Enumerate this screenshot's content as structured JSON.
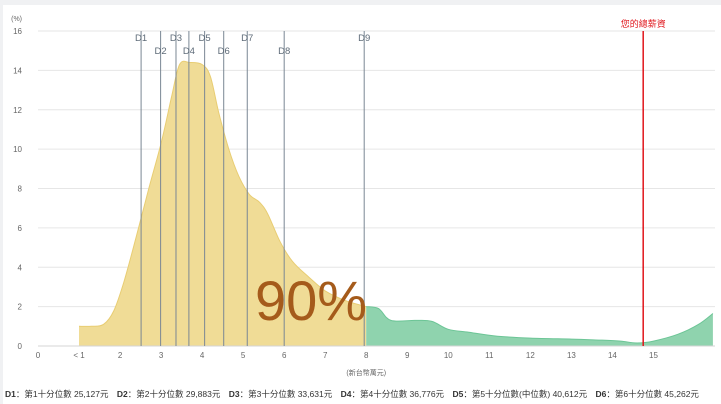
{
  "chart_data": {
    "type": "area",
    "y_unit_label": "(%)",
    "x_unit_label": "(新台幣萬元)",
    "xlim": [
      0,
      16.5
    ],
    "ylim": [
      0,
      16
    ],
    "y_ticks": [
      0,
      2,
      4,
      6,
      8,
      10,
      12,
      14,
      16
    ],
    "x_ticks": [
      {
        "v": 0,
        "label": "0"
      },
      {
        "v": 1,
        "label": "< 1"
      },
      {
        "v": 2,
        "label": "2"
      },
      {
        "v": 3,
        "label": "3"
      },
      {
        "v": 4,
        "label": "4"
      },
      {
        "v": 5,
        "label": "5"
      },
      {
        "v": 6,
        "label": "6"
      },
      {
        "v": 7,
        "label": "7"
      },
      {
        "v": 8,
        "label": "8"
      },
      {
        "v": 9,
        "label": "9"
      },
      {
        "v": 10,
        "label": "10"
      },
      {
        "v": 11,
        "label": "11"
      },
      {
        "v": 12,
        "label": "12"
      },
      {
        "v": 13,
        "label": "13"
      },
      {
        "v": 14,
        "label": "14"
      },
      {
        "v": 15,
        "label": "15"
      }
    ],
    "distribution": [
      [
        1.0,
        1.0
      ],
      [
        1.3,
        1.0
      ],
      [
        1.6,
        1.1
      ],
      [
        1.85,
        1.8
      ],
      [
        2.1,
        3.3
      ],
      [
        2.4,
        5.6
      ],
      [
        2.7,
        8.0
      ],
      [
        3.0,
        10.3
      ],
      [
        3.25,
        12.6
      ],
      [
        3.45,
        14.3
      ],
      [
        3.7,
        14.4
      ],
      [
        4.0,
        14.3
      ],
      [
        4.2,
        13.7
      ],
      [
        4.4,
        11.9
      ],
      [
        4.65,
        10.0
      ],
      [
        4.9,
        8.6
      ],
      [
        5.15,
        7.7
      ],
      [
        5.4,
        7.3
      ],
      [
        5.6,
        6.7
      ],
      [
        5.9,
        5.3
      ],
      [
        6.2,
        4.3
      ],
      [
        6.6,
        3.5
      ],
      [
        7.0,
        2.8
      ],
      [
        7.5,
        2.3
      ],
      [
        8.0,
        2.0
      ],
      [
        8.3,
        1.9
      ],
      [
        8.6,
        1.3
      ],
      [
        9.2,
        1.3
      ],
      [
        9.6,
        1.25
      ],
      [
        10.0,
        0.85
      ],
      [
        10.5,
        0.7
      ],
      [
        11.2,
        0.5
      ],
      [
        12.0,
        0.4
      ],
      [
        13.0,
        0.35
      ],
      [
        13.7,
        0.3
      ],
      [
        14.2,
        0.25
      ],
      [
        14.6,
        0.15
      ],
      [
        15.0,
        0.25
      ],
      [
        15.6,
        0.6
      ],
      [
        16.1,
        1.1
      ],
      [
        16.45,
        1.65
      ]
    ],
    "split_x": 8,
    "percent_label": "90%",
    "deciles": [
      {
        "name": "D1",
        "value": 2.5127
      },
      {
        "name": "D2",
        "value": 2.9883
      },
      {
        "name": "D3",
        "value": 3.3631
      },
      {
        "name": "D4",
        "value": 3.6776
      },
      {
        "name": "D5",
        "value": 4.0612
      },
      {
        "name": "D6",
        "value": 4.5262
      },
      {
        "name": "D7",
        "value": 5.1
      },
      {
        "name": "D8",
        "value": 6.0
      },
      {
        "name": "D9",
        "value": 7.95
      }
    ],
    "salary_marker": {
      "label": "您的總薪資",
      "value": 14.75
    },
    "colors": {
      "below": "#f0dc96",
      "below_stroke": "#e8cd73",
      "above": "#8fd3ae",
      "above_stroke": "#6cc596",
      "decile_line": "#7a8794",
      "decile_text": "#5e6b78",
      "marker": "#e0151b",
      "percent_text": "#a55b1b",
      "grid": "#e6e6e6",
      "axis_text": "#666666"
    }
  },
  "legend": [
    {
      "key": "D1",
      "text": "第1十分位數 25,127元"
    },
    {
      "key": "D2",
      "text": "第2十分位數 29,883元"
    },
    {
      "key": "D3",
      "text": "第3十分位數 33,631元"
    },
    {
      "key": "D4",
      "text": "第4十分位數 36,776元"
    },
    {
      "key": "D5",
      "text": "第5十分位數(中位數) 40,612元"
    },
    {
      "key": "D6",
      "text": "第6十分位數 45,262元"
    }
  ]
}
